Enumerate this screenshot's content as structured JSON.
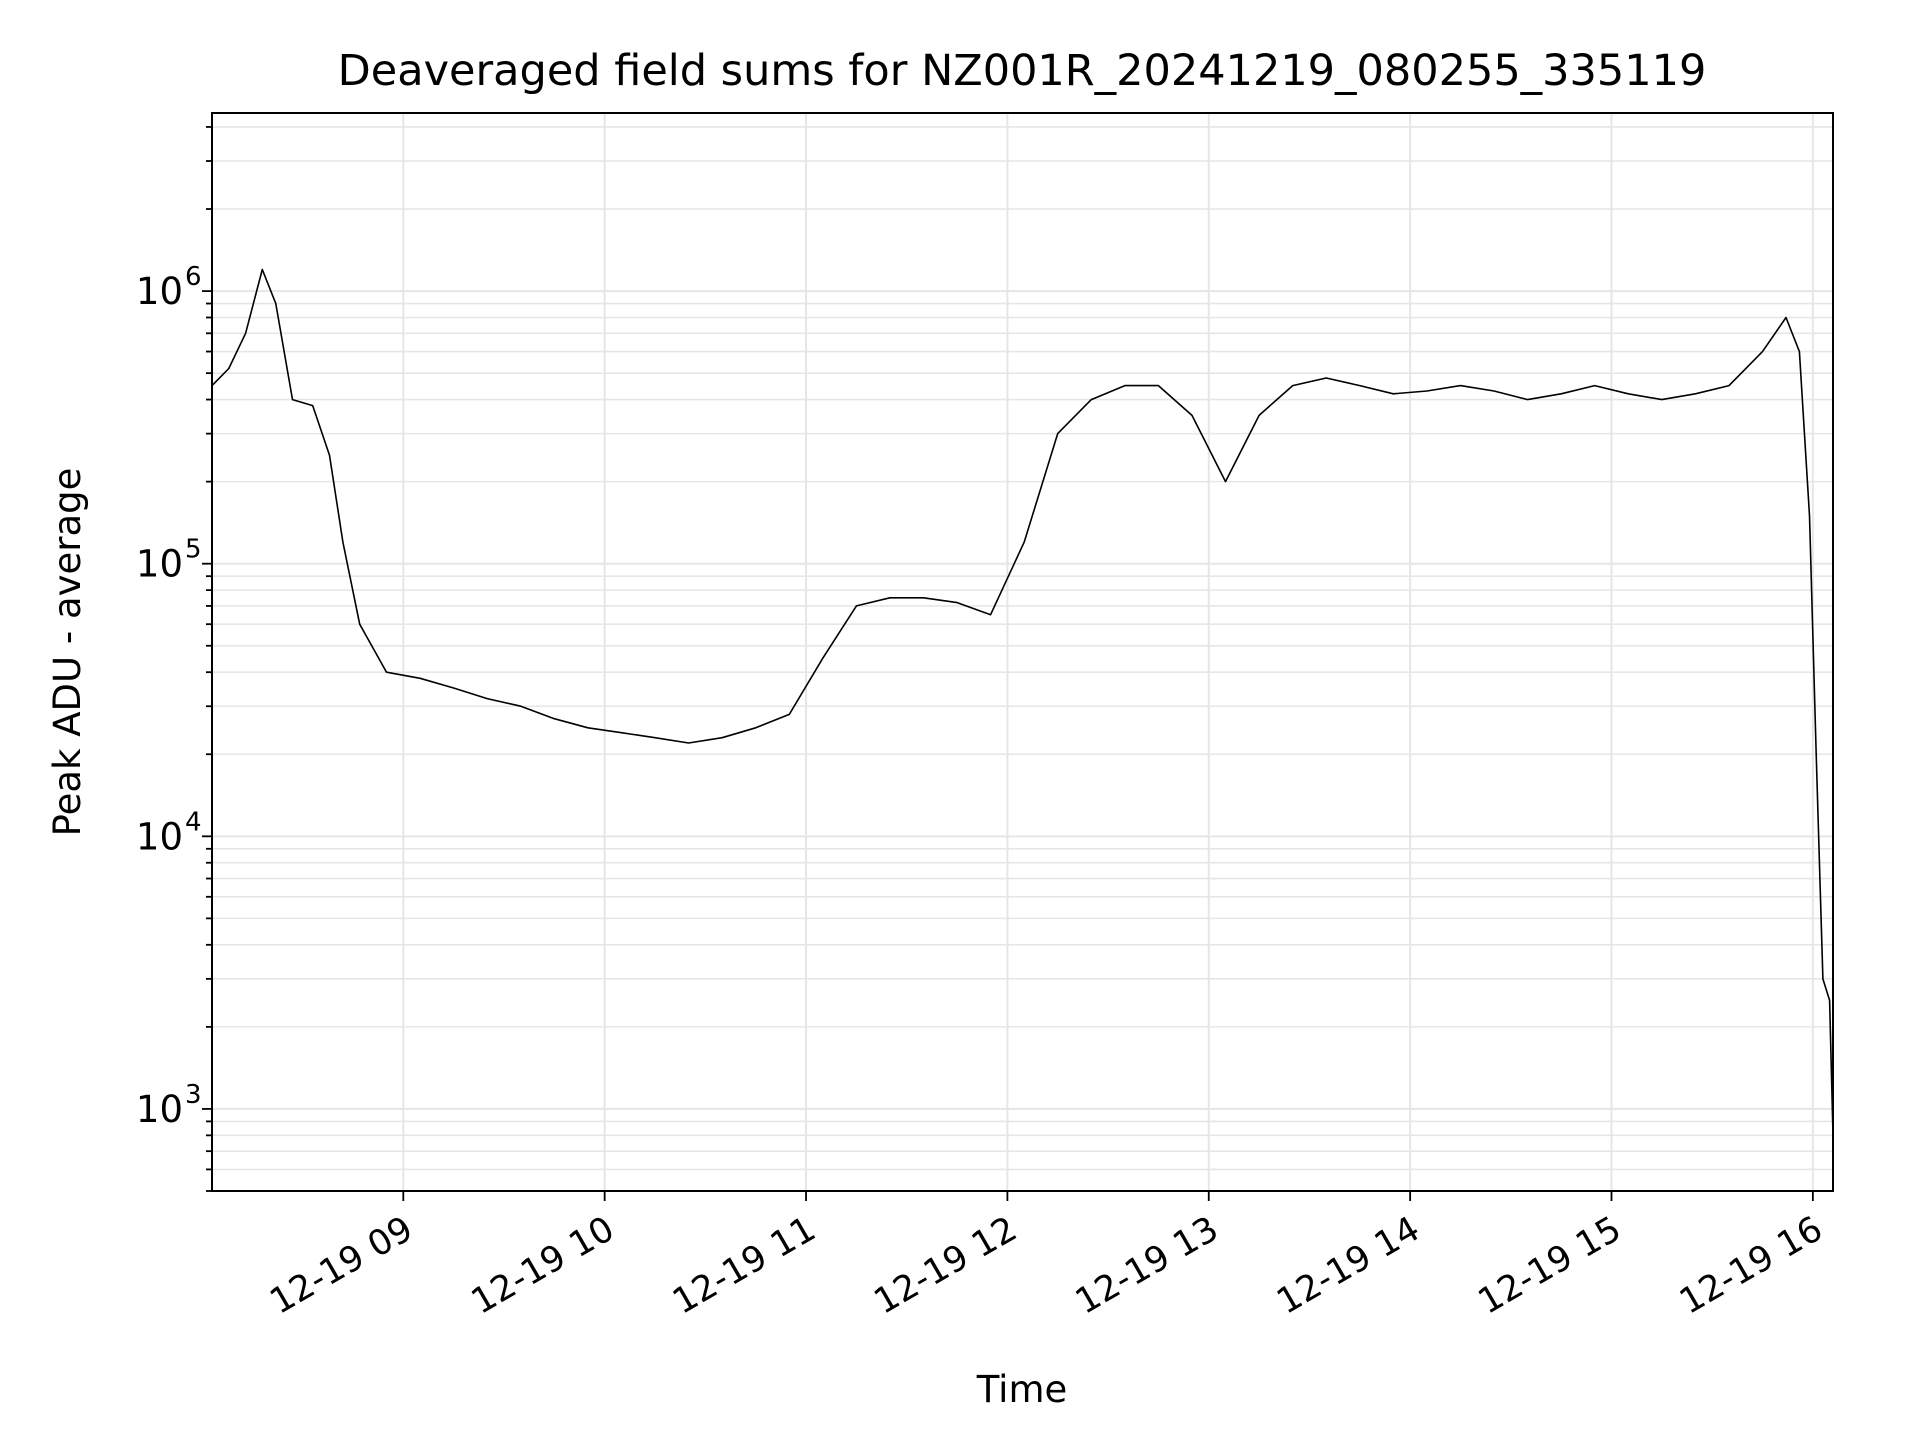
{
  "chart_data": {
    "type": "line",
    "title": "Deaveraged field sums for NZ001R_20241219_080255_335119",
    "xlabel": "Time",
    "ylabel": "Peak ADU - average",
    "yscale": "log",
    "ylim": [
      500,
      4500000
    ],
    "xlim": [
      "2024-12-19 08:03",
      "2024-12-19 16:06"
    ],
    "grid": true,
    "line_color": "#000000",
    "grid_color": "#e6e6e6",
    "x_ticks": [
      "12-19 09",
      "12-19 10",
      "12-19 11",
      "12-19 12",
      "12-19 13",
      "12-19 14",
      "12-19 15",
      "12-19 16"
    ],
    "y_ticks": [
      {
        "value": 1000,
        "label": "10",
        "exp": "3"
      },
      {
        "value": 10000,
        "label": "10",
        "exp": "4"
      },
      {
        "value": 100000,
        "label": "10",
        "exp": "5"
      },
      {
        "value": 1000000,
        "label": "10",
        "exp": "6"
      }
    ],
    "series": [
      {
        "points": [
          [
            "2024-12-19 08:03",
            450000
          ],
          [
            "2024-12-19 08:08",
            520000
          ],
          [
            "2024-12-19 08:13",
            700000
          ],
          [
            "2024-12-19 08:18",
            1200000
          ],
          [
            "2024-12-19 08:22",
            900000
          ],
          [
            "2024-12-19 08:27",
            400000
          ],
          [
            "2024-12-19 08:33",
            380000
          ],
          [
            "2024-12-19 08:38",
            250000
          ],
          [
            "2024-12-19 08:42",
            120000
          ],
          [
            "2024-12-19 08:47",
            60000
          ],
          [
            "2024-12-19 08:55",
            40000
          ],
          [
            "2024-12-19 09:05",
            38000
          ],
          [
            "2024-12-19 09:15",
            35000
          ],
          [
            "2024-12-19 09:25",
            32000
          ],
          [
            "2024-12-19 09:35",
            30000
          ],
          [
            "2024-12-19 09:45",
            27000
          ],
          [
            "2024-12-19 09:55",
            25000
          ],
          [
            "2024-12-19 10:05",
            24000
          ],
          [
            "2024-12-19 10:15",
            23000
          ],
          [
            "2024-12-19 10:25",
            22000
          ],
          [
            "2024-12-19 10:35",
            23000
          ],
          [
            "2024-12-19 10:45",
            25000
          ],
          [
            "2024-12-19 10:55",
            28000
          ],
          [
            "2024-12-19 11:05",
            45000
          ],
          [
            "2024-12-19 11:15",
            70000
          ],
          [
            "2024-12-19 11:25",
            75000
          ],
          [
            "2024-12-19 11:35",
            75000
          ],
          [
            "2024-12-19 11:45",
            72000
          ],
          [
            "2024-12-19 11:55",
            65000
          ],
          [
            "2024-12-19 12:05",
            120000
          ],
          [
            "2024-12-19 12:15",
            300000
          ],
          [
            "2024-12-19 12:25",
            400000
          ],
          [
            "2024-12-19 12:35",
            450000
          ],
          [
            "2024-12-19 12:45",
            450000
          ],
          [
            "2024-12-19 12:55",
            350000
          ],
          [
            "2024-12-19 13:05",
            200000
          ],
          [
            "2024-12-19 13:15",
            350000
          ],
          [
            "2024-12-19 13:25",
            450000
          ],
          [
            "2024-12-19 13:35",
            480000
          ],
          [
            "2024-12-19 13:45",
            450000
          ],
          [
            "2024-12-19 13:55",
            420000
          ],
          [
            "2024-12-19 14:05",
            430000
          ],
          [
            "2024-12-19 14:15",
            450000
          ],
          [
            "2024-12-19 14:25",
            430000
          ],
          [
            "2024-12-19 14:35",
            400000
          ],
          [
            "2024-12-19 14:45",
            420000
          ],
          [
            "2024-12-19 14:55",
            450000
          ],
          [
            "2024-12-19 15:05",
            420000
          ],
          [
            "2024-12-19 15:15",
            400000
          ],
          [
            "2024-12-19 15:25",
            420000
          ],
          [
            "2024-12-19 15:35",
            450000
          ],
          [
            "2024-12-19 15:45",
            600000
          ],
          [
            "2024-12-19 15:52",
            800000
          ],
          [
            "2024-12-19 15:56",
            600000
          ],
          [
            "2024-12-19 15:59",
            150000
          ],
          [
            "2024-12-19 16:01",
            20000
          ],
          [
            "2024-12-19 16:03",
            3000
          ],
          [
            "2024-12-19 16:05",
            2500
          ],
          [
            "2024-12-19 16:06",
            800
          ]
        ]
      }
    ]
  }
}
